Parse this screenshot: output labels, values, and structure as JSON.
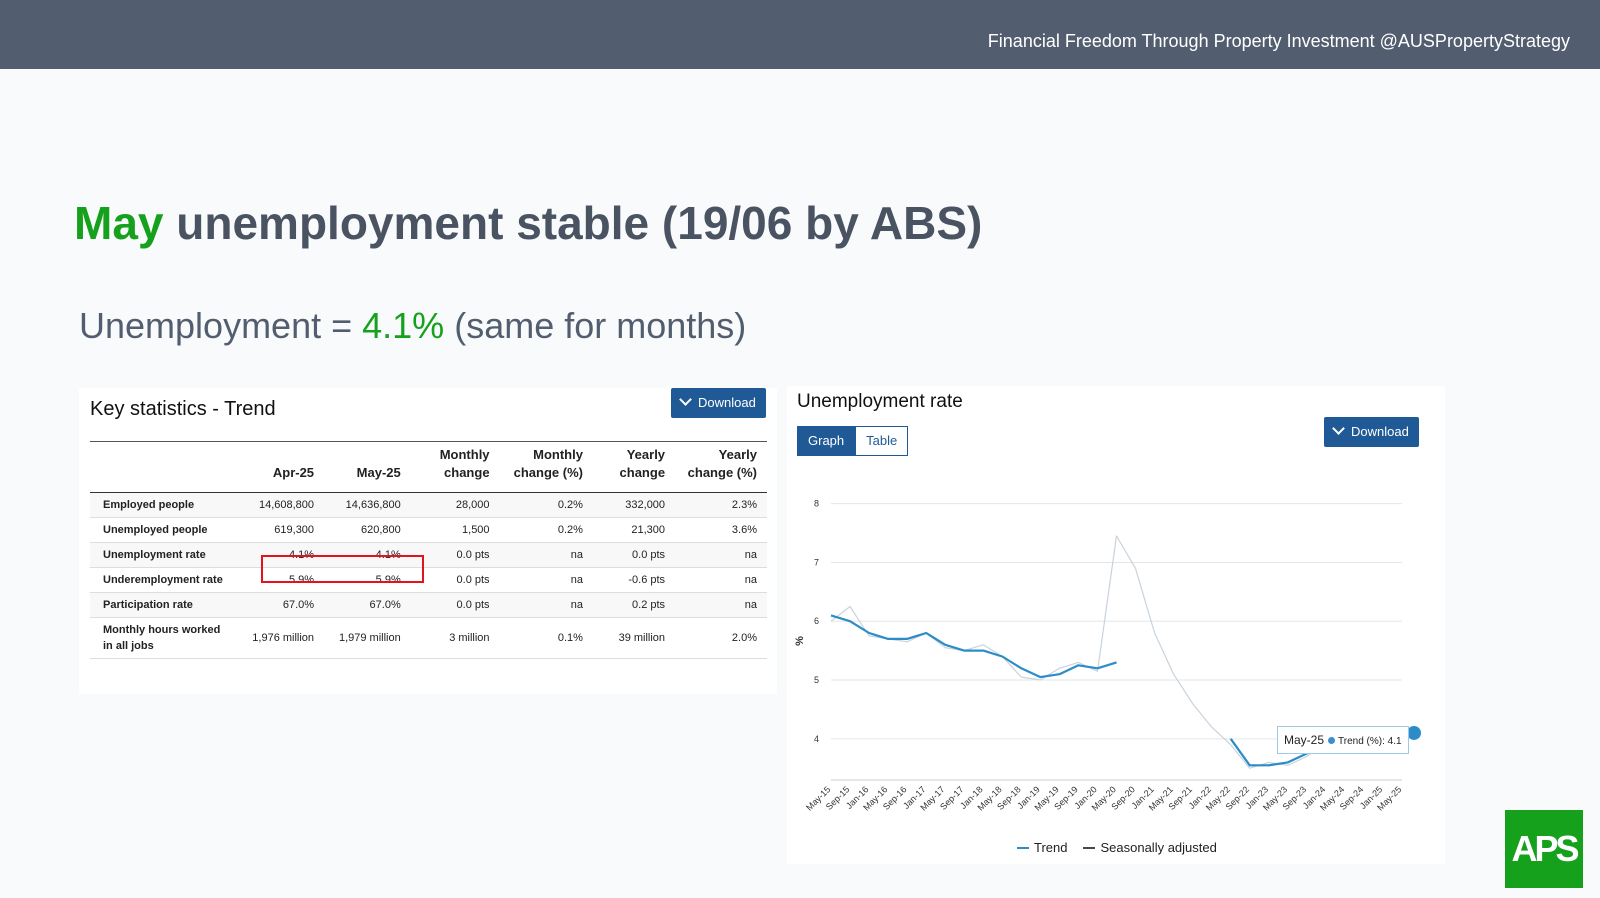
{
  "header": {
    "tagline": "Financial Freedom Through Property Investment @AUSPropertyStrategy"
  },
  "title": {
    "highlight": "May",
    "rest": "unemployment stable (19/06 by ABS)"
  },
  "subtitle": {
    "prefix": "Unemployment = ",
    "value": "4.1%",
    "suffix": "(same for months)"
  },
  "stats": {
    "heading": "Key statistics - Trend",
    "download_label": "Download",
    "columns": [
      "",
      "Apr-25",
      "May-25",
      "Monthly change",
      "Monthly change (%)",
      "Yearly change",
      "Yearly change (%)"
    ],
    "rows": [
      [
        "Employed people",
        "14,608,800",
        "14,636,800",
        "28,000",
        "0.2%",
        "332,000",
        "2.3%"
      ],
      [
        "Unemployed people",
        "619,300",
        "620,800",
        "1,500",
        "0.2%",
        "21,300",
        "3.6%"
      ],
      [
        "Unemployment rate",
        "4.1%",
        "4.1%",
        "0.0 pts",
        "na",
        "0.0 pts",
        "na"
      ],
      [
        "Underemployment rate",
        "5.9%",
        "5.9%",
        "0.0 pts",
        "na",
        "-0.6 pts",
        "na"
      ],
      [
        "Participation rate",
        "67.0%",
        "67.0%",
        "0.0 pts",
        "na",
        "0.2 pts",
        "na"
      ],
      [
        "Monthly hours worked in all jobs",
        "1,976 million",
        "1,979 million",
        "3 million",
        "0.1%",
        "39 million",
        "2.0%"
      ]
    ]
  },
  "chart_panel": {
    "heading": "Unemployment rate",
    "tabs": {
      "graph": "Graph",
      "table": "Table"
    },
    "download_label": "Download",
    "tooltip": {
      "date": "May-25",
      "label": "Trend (%): 4.1"
    },
    "colors": {
      "trend": "#2b8cc8",
      "seasonally_adjusted": "#c9d3dc",
      "accent": "#1f5a96"
    }
  },
  "chart_data": {
    "type": "line",
    "title": "Unemployment rate",
    "ylabel": "%",
    "xlabel": "",
    "ylim": [
      3.3,
      8.3
    ],
    "yticks": [
      4,
      5,
      6,
      7,
      8
    ],
    "grid": true,
    "legend": "bottom",
    "x_labels": [
      "May-15",
      "Sep-15",
      "Jan-16",
      "May-16",
      "Sep-16",
      "Jan-17",
      "May-17",
      "Sep-17",
      "Jan-18",
      "May-18",
      "Sep-18",
      "Jan-19",
      "May-19",
      "Sep-19",
      "Jan-20",
      "May-20",
      "Sep-20",
      "Jan-21",
      "May-21",
      "Sep-21",
      "Jan-22",
      "May-22",
      "Sep-22",
      "Jan-23",
      "May-23",
      "Sep-23",
      "Jan-24",
      "May-24",
      "Sep-24",
      "Jan-25",
      "May-25"
    ],
    "series": [
      {
        "name": "Trend",
        "values": [
          6.1,
          6.0,
          5.8,
          5.7,
          5.7,
          5.8,
          5.6,
          5.5,
          5.5,
          5.4,
          5.2,
          5.05,
          5.1,
          5.25,
          5.2,
          5.3,
          null,
          null,
          null,
          null,
          null,
          4.0,
          3.55,
          3.55,
          3.6,
          3.75,
          3.9,
          4.05,
          4.1,
          4.1,
          4.1
        ]
      },
      {
        "name": "Seasonally adjusted",
        "values": [
          6.0,
          6.25,
          5.75,
          5.7,
          5.65,
          5.8,
          5.55,
          5.5,
          5.6,
          5.4,
          5.05,
          5.0,
          5.2,
          5.3,
          5.15,
          7.45,
          6.9,
          5.8,
          5.1,
          4.6,
          4.2,
          3.9,
          3.5,
          3.6,
          3.55,
          3.7,
          3.95,
          4.05,
          4.15,
          4.05,
          4.1
        ]
      }
    ]
  }
}
